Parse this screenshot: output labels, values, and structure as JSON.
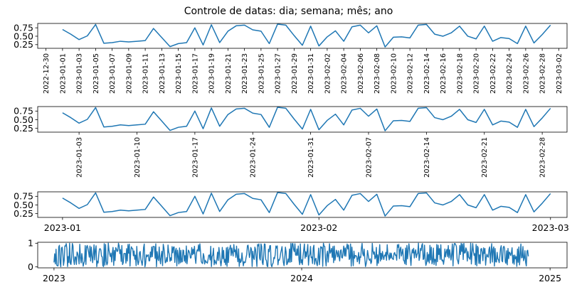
{
  "figure": {
    "title": "Controle de datas: dia; semana; mês; ano"
  },
  "chart_data": [
    {
      "type": "line",
      "title": "",
      "xlabel": "",
      "ylabel": "",
      "color": "#1f77b4",
      "x_range": [
        "2022-12-29",
        "2023-03-03"
      ],
      "ylim": [
        0.14,
        0.88
      ],
      "yticks": [
        0.25,
        0.5,
        0.75
      ],
      "ytick_labels": [
        "0.25",
        "0.50",
        "0.75"
      ],
      "xticks": [
        "2022-12-30",
        "2023-01-01",
        "2023-01-03",
        "2023-01-05",
        "2023-01-07",
        "2023-01-09",
        "2023-01-11",
        "2023-01-13",
        "2023-01-15",
        "2023-01-17",
        "2023-01-19",
        "2023-01-21",
        "2023-01-23",
        "2023-01-25",
        "2023-01-27",
        "2023-01-29",
        "2023-01-31",
        "2023-02-02",
        "2023-02-04",
        "2023-02-06",
        "2023-02-08",
        "2023-02-10",
        "2023-02-12",
        "2023-02-14",
        "2023-02-16",
        "2023-02-18",
        "2023-02-20",
        "2023-02-22",
        "2023-02-24",
        "2023-02-26",
        "2023-02-28",
        "2023-03-02"
      ],
      "xtick_labels": [
        "2022-12-30",
        "2023-01-01",
        "2023-01-03",
        "2023-01-05",
        "2023-01-07",
        "2023-01-09",
        "2023-01-11",
        "2023-01-13",
        "2023-01-15",
        "2023-01-17",
        "2023-01-19",
        "2023-01-21",
        "2023-01-23",
        "2023-01-25",
        "2023-01-27",
        "2023-01-29",
        "2023-01-31",
        "2023-02-02",
        "2023-02-04",
        "2023-02-06",
        "2023-02-08",
        "2023-02-10",
        "2023-02-12",
        "2023-02-14",
        "2023-02-16",
        "2023-02-18",
        "2023-02-20",
        "2023-02-22",
        "2023-02-24",
        "2023-02-26",
        "2023-02-28",
        "2023-03-02"
      ],
      "xtick_rotation": 90,
      "x_start": "2023-01-01",
      "y": [
        0.7,
        0.56,
        0.4,
        0.51,
        0.85,
        0.29,
        0.31,
        0.35,
        0.33,
        0.35,
        0.37,
        0.73,
        0.46,
        0.19,
        0.28,
        0.31,
        0.75,
        0.24,
        0.84,
        0.31,
        0.65,
        0.81,
        0.83,
        0.69,
        0.65,
        0.28,
        0.86,
        0.83,
        0.52,
        0.23,
        0.8,
        0.21,
        0.48,
        0.66,
        0.35,
        0.78,
        0.83,
        0.6,
        0.81,
        0.18,
        0.47,
        0.48,
        0.45,
        0.83,
        0.85,
        0.56,
        0.5,
        0.6,
        0.8,
        0.5,
        0.42,
        0.8,
        0.35,
        0.46,
        0.43,
        0.28,
        0.8,
        0.3,
        0.55,
        0.83
      ]
    },
    {
      "type": "line",
      "title": "",
      "xlabel": "",
      "ylabel": "",
      "color": "#1f77b4",
      "x_range": [
        "2022-12-29",
        "2023-03-03"
      ],
      "ylim": [
        0.14,
        0.88
      ],
      "yticks": [
        0.25,
        0.5,
        0.75
      ],
      "ytick_labels": [
        "0.25",
        "0.50",
        "0.75"
      ],
      "xticks": [
        "2023-01-03",
        "2023-01-10",
        "2023-01-17",
        "2023-01-24",
        "2023-01-31",
        "2023-02-07",
        "2023-02-14",
        "2023-02-21",
        "2023-02-28"
      ],
      "xtick_labels": [
        "2023-01-03",
        "2023-01-10",
        "2023-01-17",
        "2023-01-24",
        "2023-01-31",
        "2023-02-07",
        "2023-02-14",
        "2023-02-21",
        "2023-02-28"
      ],
      "xtick_rotation": 90,
      "x_start": "2023-01-01",
      "y": [
        0.7,
        0.56,
        0.4,
        0.51,
        0.85,
        0.29,
        0.31,
        0.35,
        0.33,
        0.35,
        0.37,
        0.73,
        0.46,
        0.19,
        0.28,
        0.31,
        0.75,
        0.24,
        0.84,
        0.31,
        0.65,
        0.81,
        0.83,
        0.69,
        0.65,
        0.28,
        0.86,
        0.83,
        0.52,
        0.23,
        0.8,
        0.21,
        0.48,
        0.66,
        0.35,
        0.78,
        0.83,
        0.6,
        0.81,
        0.18,
        0.47,
        0.48,
        0.45,
        0.83,
        0.85,
        0.56,
        0.5,
        0.6,
        0.8,
        0.5,
        0.42,
        0.8,
        0.35,
        0.46,
        0.43,
        0.28,
        0.8,
        0.3,
        0.55,
        0.83
      ]
    },
    {
      "type": "line",
      "title": "",
      "xlabel": "",
      "ylabel": "",
      "color": "#1f77b4",
      "x_range": [
        "2022-12-29",
        "2023-03-03"
      ],
      "ylim": [
        0.14,
        0.88
      ],
      "yticks": [
        0.25,
        0.5,
        0.75
      ],
      "ytick_labels": [
        "0.25",
        "0.50",
        "0.75"
      ],
      "xticks": [
        "2023-01-01",
        "2023-02-01",
        "2023-03-01"
      ],
      "xtick_labels": [
        "2023-01",
        "2023-02",
        "2023-03"
      ],
      "xtick_rotation": 0,
      "x_start": "2023-01-01",
      "y": [
        0.7,
        0.56,
        0.4,
        0.51,
        0.85,
        0.29,
        0.31,
        0.35,
        0.33,
        0.35,
        0.37,
        0.73,
        0.46,
        0.19,
        0.28,
        0.31,
        0.75,
        0.24,
        0.84,
        0.31,
        0.65,
        0.81,
        0.83,
        0.69,
        0.65,
        0.28,
        0.86,
        0.83,
        0.52,
        0.23,
        0.8,
        0.21,
        0.48,
        0.66,
        0.35,
        0.78,
        0.83,
        0.6,
        0.81,
        0.18,
        0.47,
        0.48,
        0.45,
        0.83,
        0.85,
        0.56,
        0.5,
        0.6,
        0.8,
        0.5,
        0.42,
        0.8,
        0.35,
        0.46,
        0.43,
        0.28,
        0.8,
        0.3,
        0.55,
        0.83
      ]
    },
    {
      "type": "line",
      "title": "",
      "xlabel": "",
      "ylabel": "",
      "color": "#1f77b4",
      "x_range": [
        "2022-12-08",
        "2025-01-26"
      ],
      "ylim": [
        -0.04,
        1.04
      ],
      "yticks": [
        0,
        1
      ],
      "ytick_labels": [
        "0",
        "1"
      ],
      "xticks": [
        "2023-01-01",
        "2024-01-01",
        "2025-01-01"
      ],
      "xtick_labels": [
        "2023",
        "2024",
        "2025"
      ],
      "xtick_rotation": 0,
      "x_start": "2023-01-01",
      "n_points": 700,
      "random_uniform_0_1": true,
      "seed": 19680801
    }
  ]
}
